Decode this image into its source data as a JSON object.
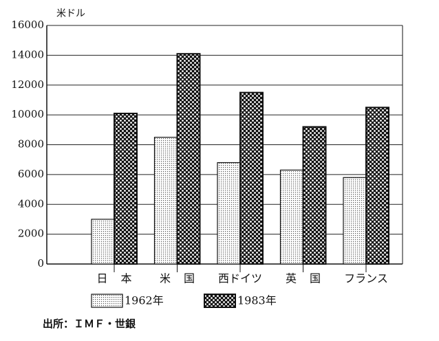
{
  "chart_data": {
    "type": "bar",
    "unit_label": "米ドル",
    "categories": [
      "日 本",
      "米 国",
      "西ドイツ",
      "英 国",
      "フランス"
    ],
    "series": [
      {
        "name": "1962年",
        "color": "#555555",
        "values": [
          3000,
          8500,
          6800,
          6300,
          5800
        ]
      },
      {
        "name": "1983年",
        "color": "#111111",
        "values": [
          10100,
          14100,
          11500,
          9200,
          10500
        ]
      }
    ],
    "ylim": [
      0,
      16000
    ],
    "yticks": [
      0,
      2000,
      4000,
      6000,
      8000,
      10000,
      12000,
      14000,
      16000
    ],
    "grid": true,
    "source": "出所：ＩＭＦ・世銀"
  }
}
